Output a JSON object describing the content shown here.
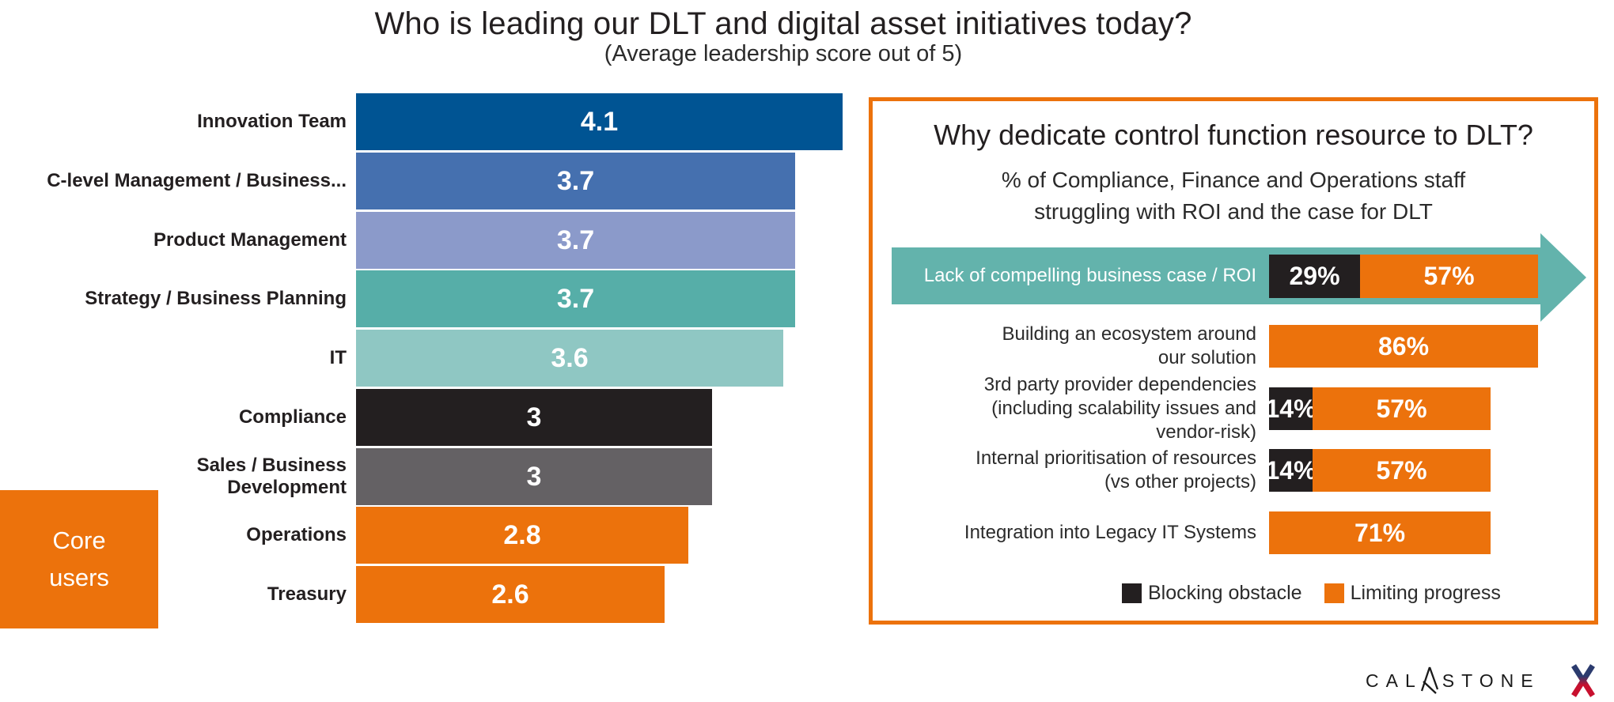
{
  "page": {
    "title": "Who is leading our DLT and digital asset initiatives today?",
    "subtitle": "(Average leadership score out of 5)"
  },
  "colors": {
    "orange": "#EC720C",
    "teal_arrow": "#63B3AC",
    "black_bar": "#231F20",
    "text_dark": "#231F20"
  },
  "left_chart": {
    "core_users_label": "Core\nusers",
    "rows": [
      {
        "label": "Innovation Team",
        "value": 4.1,
        "display": "4.1",
        "color": "#005493"
      },
      {
        "label": "C-level Management / Business...",
        "value": 3.7,
        "display": "3.7",
        "color": "#4570AF"
      },
      {
        "label": "Product Management",
        "value": 3.7,
        "display": "3.7",
        "color": "#8B9ACA"
      },
      {
        "label": "Strategy / Business Planning",
        "value": 3.7,
        "display": "3.7",
        "color": "#56AEA8"
      },
      {
        "label": "IT",
        "value": 3.6,
        "display": "3.6",
        "color": "#8FC7C3"
      },
      {
        "label": "Compliance",
        "value": 3,
        "display": "3",
        "color": "#231F20"
      },
      {
        "label": "Sales / Business\nDevelopment",
        "value": 3,
        "display": "3",
        "color": "#646164"
      },
      {
        "label": "Operations",
        "value": 2.8,
        "display": "2.8",
        "color": "#EC720C"
      },
      {
        "label": "Treasury",
        "value": 2.6,
        "display": "2.6",
        "color": "#EC720C"
      }
    ]
  },
  "right_panel": {
    "title": "Why dedicate control function resource to DLT?",
    "subtitle": "% of Compliance, Finance and Operations staff\nstruggling with ROI and the case for DLT",
    "arrow_row": {
      "label": "Lack of compelling business case / ROI",
      "blocking": 29,
      "blocking_display": "29%",
      "limiting": 57,
      "limiting_display": "57%"
    },
    "rows": [
      {
        "label": "Building an ecosystem around\nour solution",
        "blocking": 0,
        "blocking_display": "",
        "limiting": 86,
        "limiting_display": "86%"
      },
      {
        "label": "3rd party provider dependencies\n(including scalability issues and\nvendor-risk)",
        "blocking": 14,
        "blocking_display": "14%",
        "limiting": 57,
        "limiting_display": "57%"
      },
      {
        "label": "Internal prioritisation of resources\n(vs other projects)",
        "blocking": 14,
        "blocking_display": "14%",
        "limiting": 57,
        "limiting_display": "57%"
      },
      {
        "label": "Integration into Legacy IT Systems",
        "blocking": 0,
        "blocking_display": "",
        "limiting": 71,
        "limiting_display": "71%"
      }
    ],
    "legend": [
      {
        "label": "Blocking obstacle",
        "color": "#231F20"
      },
      {
        "label": "Limiting progress",
        "color": "#EC720C"
      }
    ]
  },
  "logo": {
    "brand_left": "CAL",
    "brand_right": "STONE"
  },
  "chart_data": [
    {
      "type": "bar",
      "orientation": "horizontal",
      "title": "Who is leading our DLT and digital asset initiatives today?",
      "subtitle": "(Average leadership score out of 5)",
      "categories": [
        "Innovation Team",
        "C-level Management / Business...",
        "Product Management",
        "Strategy / Business Planning",
        "IT",
        "Compliance",
        "Sales / Business Development",
        "Operations",
        "Treasury"
      ],
      "values": [
        4.1,
        3.7,
        3.7,
        3.7,
        3.6,
        3,
        3,
        2.8,
        2.6
      ],
      "bar_colors": [
        "#005493",
        "#4570AF",
        "#8B9ACA",
        "#56AEA8",
        "#8FC7C3",
        "#231F20",
        "#646164",
        "#EC720C",
        "#EC720C"
      ],
      "xlabel": "",
      "ylabel": "",
      "xlim": [
        0,
        5
      ],
      "grid": false,
      "legend_position": "none",
      "annotations": [
        "Core users (orange badge next to Operations and Treasury)"
      ]
    },
    {
      "type": "bar",
      "orientation": "horizontal",
      "stacked": true,
      "title": "Why dedicate control function resource to DLT?",
      "subtitle": "% of Compliance, Finance and Operations staff struggling with ROI and the case for DLT",
      "categories": [
        "Lack of compelling business case / ROI",
        "Building an ecosystem around our solution",
        "3rd party provider dependencies (including scalability issues and vendor-risk)",
        "Internal prioritisation of resources (vs other projects)",
        "Integration into Legacy IT Systems"
      ],
      "series": [
        {
          "name": "Blocking obstacle",
          "color": "#231F20",
          "values": [
            29,
            0,
            14,
            14,
            0
          ]
        },
        {
          "name": "Limiting progress",
          "color": "#EC720C",
          "values": [
            57,
            86,
            57,
            57,
            71
          ]
        }
      ],
      "xlabel": "",
      "ylabel": "",
      "xlim": [
        0,
        100
      ],
      "grid": false,
      "legend_position": "bottom",
      "annotations": [
        "First category drawn on a teal right-pointing arrow banner"
      ]
    }
  ]
}
